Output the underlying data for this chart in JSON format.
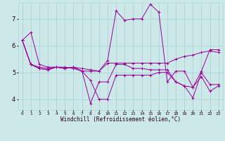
{
  "xlabel": "Windchill (Refroidissement éolien,°C)",
  "bg_color": "#cce8e8",
  "grid_color": "#aad4d4",
  "line_color": "#990099",
  "marker": "+",
  "xlim": [
    -0.5,
    23.5
  ],
  "ylim": [
    3.6,
    7.6
  ],
  "xticks": [
    0,
    1,
    2,
    3,
    4,
    5,
    6,
    7,
    8,
    9,
    10,
    11,
    12,
    13,
    14,
    15,
    16,
    17,
    18,
    19,
    20,
    21,
    22,
    23
  ],
  "yticks": [
    4,
    5,
    6,
    7
  ],
  "series": [
    [
      6.2,
      6.5,
      5.3,
      5.2,
      5.2,
      5.2,
      5.15,
      5.05,
      5.05,
      5.05,
      5.45,
      7.3,
      6.95,
      7.0,
      7.0,
      7.55,
      7.25,
      4.65,
      5.05,
      5.05,
      4.45,
      5.05,
      5.85,
      5.85
    ],
    [
      6.2,
      5.3,
      5.2,
      5.15,
      5.2,
      5.15,
      5.2,
      5.15,
      5.1,
      5.05,
      5.35,
      5.35,
      5.35,
      5.35,
      5.35,
      5.35,
      5.35,
      5.35,
      5.5,
      5.6,
      5.65,
      5.75,
      5.8,
      5.75
    ],
    [
      6.2,
      5.3,
      5.15,
      5.1,
      5.2,
      5.15,
      5.2,
      5.05,
      3.85,
      4.65,
      4.65,
      5.3,
      5.3,
      5.15,
      5.15,
      5.1,
      5.1,
      5.1,
      4.65,
      4.5,
      4.05,
      5.0,
      4.55,
      4.55
    ],
    [
      6.2,
      5.3,
      5.15,
      5.1,
      5.2,
      5.15,
      5.2,
      5.05,
      4.7,
      4.0,
      4.0,
      4.9,
      4.9,
      4.9,
      4.9,
      4.9,
      5.0,
      5.0,
      4.65,
      4.5,
      4.45,
      4.85,
      4.3,
      4.5
    ]
  ]
}
